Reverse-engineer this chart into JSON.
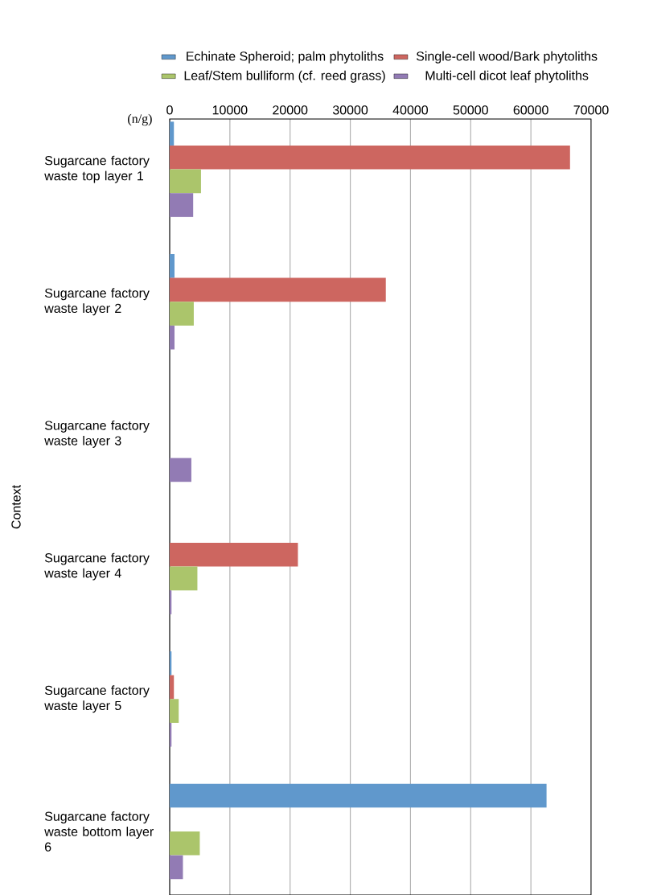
{
  "chart_data": {
    "type": "bar",
    "orientation": "horizontal",
    "xlabel": "(n/g)",
    "ylabel": "Context",
    "categories": [
      "Sugarcane factory waste top layer 1",
      "Sugarcane factory waste layer 2",
      "Sugarcane factory waste layer 3",
      "Sugarcane factory waste layer 4",
      "Sugarcane factory waste layer 5",
      "Sugarcane factory waste bottom layer 6"
    ],
    "series": [
      {
        "name": "Echinate Spheroid; palm phytoliths",
        "color": "#6098cc",
        "values": [
          700,
          800,
          0,
          0,
          300,
          62600
        ]
      },
      {
        "name": "Single-cell wood/Bark phytoliths",
        "color": "#cd6660",
        "values": [
          66500,
          35900,
          0,
          21300,
          700,
          0
        ]
      },
      {
        "name": "Leaf/Stem bulliform (cf. reed grass)",
        "color": "#abc56b",
        "values": [
          5200,
          4000,
          0,
          4600,
          1500,
          5000
        ]
      },
      {
        "name": "Multi-cell dicot leaf phytoliths",
        "color": "#927bb4",
        "values": [
          3900,
          800,
          3600,
          300,
          300,
          2200
        ]
      }
    ],
    "xlim": [
      0,
      70000
    ],
    "xticks": [
      0,
      10000,
      20000,
      30000,
      40000,
      50000,
      60000,
      70000
    ],
    "grid": "x",
    "legend": "top"
  }
}
